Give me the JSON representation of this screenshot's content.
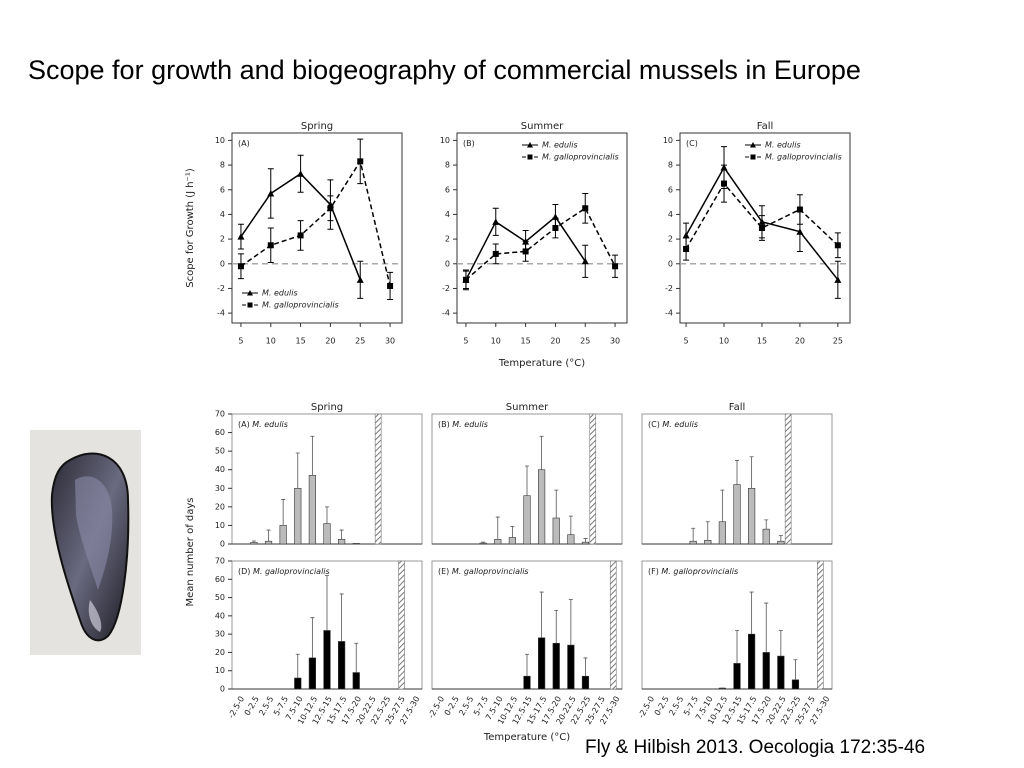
{
  "title": "Scope for growth and biogeography of commercial mussels in Europe",
  "citation": "Fly & Hilbish 2013. Oecologia  172:35-46",
  "chart_data": [
    {
      "type": "line",
      "title": "Spring",
      "panel": "(A)",
      "ylabel": "Scope for Growth (J h⁻¹)",
      "xlim": [
        3.5,
        32
      ],
      "xticks": [
        5,
        10,
        15,
        20,
        25,
        30
      ],
      "ylim": [
        -4.8,
        10.6
      ],
      "yticks": [
        -4,
        -2,
        0,
        2,
        4,
        6,
        8,
        10
      ],
      "hline": 0,
      "legend": "lower left",
      "series": [
        {
          "name": "M. edulis",
          "color": "#000000",
          "marker": "triangle",
          "dash": false,
          "x": [
            5,
            10,
            15,
            20,
            25
          ],
          "values": [
            2.2,
            5.7,
            7.3,
            4.8,
            -1.3
          ],
          "errors": [
            1.0,
            2.0,
            1.5,
            2.0,
            1.5
          ]
        },
        {
          "name": "M. galloprovincialis",
          "color": "#000000",
          "marker": "square",
          "dash": true,
          "x": [
            5,
            10,
            15,
            20,
            25,
            30
          ],
          "values": [
            -0.2,
            1.5,
            2.3,
            4.5,
            8.3,
            -1.8
          ],
          "errors": [
            1.0,
            1.4,
            1.2,
            1.0,
            1.8,
            1.1
          ]
        }
      ]
    },
    {
      "type": "line",
      "title": "Summer",
      "panel": "(B)",
      "xlabel": "Temperature (°C)",
      "xlim": [
        3.5,
        32
      ],
      "xticks": [
        5,
        10,
        15,
        20,
        25,
        30
      ],
      "ylim": [
        -4.8,
        10.6
      ],
      "yticks": [
        -4,
        -2,
        0,
        2,
        4,
        6,
        8,
        10
      ],
      "hline": 0,
      "legend": "upper right",
      "series": [
        {
          "name": "M. edulis",
          "color": "#000000",
          "marker": "triangle",
          "dash": false,
          "x": [
            5,
            10,
            15,
            20,
            25
          ],
          "values": [
            -1.3,
            3.4,
            1.8,
            3.8,
            0.2
          ],
          "errors": [
            0.7,
            1.1,
            0.9,
            1.0,
            1.3
          ]
        },
        {
          "name": "M. galloprovincialis",
          "color": "#000000",
          "marker": "square",
          "dash": true,
          "x": [
            5,
            10,
            15,
            20,
            25,
            30
          ],
          "values": [
            -1.3,
            0.8,
            1.0,
            2.9,
            4.5,
            -0.2
          ],
          "errors": [
            0.8,
            0.8,
            0.8,
            0.8,
            1.2,
            0.9
          ]
        }
      ]
    },
    {
      "type": "line",
      "title": "Fall",
      "panel": "(C)",
      "xlim": [
        4.2,
        26.6
      ],
      "xticks": [
        5,
        10,
        15,
        20,
        25
      ],
      "ylim": [
        -4.8,
        10.6
      ],
      "yticks": [
        -4,
        -2,
        0,
        2,
        4,
        6,
        8,
        10
      ],
      "hline": 0,
      "legend": "upper right",
      "series": [
        {
          "name": "M. edulis",
          "color": "#000000",
          "marker": "triangle",
          "dash": false,
          "x": [
            5,
            10,
            15,
            20,
            25
          ],
          "values": [
            2.3,
            7.8,
            3.4,
            2.6,
            -1.3
          ],
          "errors": [
            1.0,
            1.7,
            1.3,
            1.6,
            1.5
          ]
        },
        {
          "name": "M. galloprovincialis",
          "color": "#000000",
          "marker": "square",
          "dash": true,
          "x": [
            5,
            10,
            15,
            20,
            25
          ],
          "values": [
            1.2,
            6.5,
            2.9,
            4.4,
            1.5
          ],
          "errors": [
            0.9,
            1.5,
            1.0,
            1.2,
            1.0
          ]
        }
      ]
    },
    {
      "type": "bar",
      "title": "Spring",
      "panel": "(A)",
      "species": "M. edulis",
      "ylabel": "Mean number of days",
      "color": "#bbbbbb",
      "xlim": [
        -2.5,
        30
      ],
      "ylim": [
        0,
        70
      ],
      "yticks": [
        0,
        10,
        20,
        30,
        40,
        50,
        60,
        70
      ],
      "hatch_x": 22.5,
      "values": [
        0,
        0.8,
        1.5,
        10,
        30,
        37,
        11,
        2.5,
        0.3,
        0,
        0,
        0,
        0
      ],
      "errors": [
        null,
        0.8,
        6,
        14,
        19,
        21,
        9,
        5,
        0,
        null,
        null,
        null,
        null
      ]
    },
    {
      "type": "bar",
      "title": "Summer",
      "panel": "(B)",
      "species": "M. edulis",
      "color": "#bbbbbb",
      "xlim": [
        -2.5,
        30
      ],
      "ylim": [
        0,
        70
      ],
      "hatch_x": 25,
      "values": [
        0,
        0,
        0,
        0.5,
        2.5,
        3.5,
        26,
        40,
        14,
        5,
        1,
        0,
        0
      ],
      "errors": [
        null,
        null,
        null,
        0.5,
        12,
        6,
        16,
        18,
        15,
        10,
        2,
        null,
        null
      ]
    },
    {
      "type": "bar",
      "title": "Fall",
      "panel": "(C)",
      "species": "M. edulis",
      "color": "#bbbbbb",
      "xlim": [
        -2.5,
        30
      ],
      "ylim": [
        0,
        70
      ],
      "hatch_x": 22.5,
      "values": [
        0,
        0,
        0,
        1.5,
        2,
        12,
        32,
        30,
        8,
        1.5,
        0,
        0,
        0
      ],
      "errors": [
        null,
        null,
        null,
        7,
        10,
        17,
        13,
        17,
        5,
        3,
        null,
        null,
        null
      ]
    },
    {
      "type": "bar",
      "panel": "(D)",
      "species": "M. galloprovincialis",
      "color": "#000000",
      "xlim": [
        -2.5,
        30
      ],
      "ylim": [
        0,
        70
      ],
      "yticks": [
        0,
        10,
        20,
        30,
        40,
        50,
        60,
        70
      ],
      "hatch_x": 26.5,
      "categories": [
        "-2.5-0",
        "0-2.5",
        "2.5-5",
        "5-7.5",
        "7.5-10",
        "10-12.5",
        "12.5-15",
        "15-17.5",
        "17.5-20",
        "20-22.5",
        "22.5-25",
        "25-27.5",
        "27.5-30"
      ],
      "values": [
        0,
        0,
        0,
        0,
        6,
        17,
        32,
        26,
        9,
        0,
        0,
        0,
        0
      ],
      "errors": [
        null,
        null,
        null,
        null,
        13,
        22,
        30,
        26,
        16,
        null,
        null,
        null,
        null
      ]
    },
    {
      "type": "bar",
      "panel": "(E)",
      "species": "M. galloprovincialis",
      "color": "#000000",
      "xlabel": "Temperature (°C)",
      "xlim": [
        -2.5,
        30
      ],
      "ylim": [
        0,
        70
      ],
      "hatch_x": 28.5,
      "categories": [
        "-2.5-0",
        "0-2.5",
        "2.5-5",
        "5-7.5",
        "7.5-10",
        "10-12.5",
        "12.5-15",
        "15-17.5",
        "17.5-20",
        "20-22.5",
        "22.5-25",
        "25-27.5",
        "27.5-30"
      ],
      "values": [
        0,
        0,
        0,
        0,
        0,
        0,
        7,
        28,
        25,
        24,
        7,
        0,
        0
      ],
      "errors": [
        null,
        null,
        null,
        null,
        null,
        null,
        12,
        25,
        18,
        25,
        10,
        null,
        null
      ]
    },
    {
      "type": "bar",
      "panel": "(F)",
      "species": "M. galloprovincialis",
      "color": "#000000",
      "xlim": [
        -2.5,
        30
      ],
      "ylim": [
        0,
        70
      ],
      "hatch_x": 28,
      "categories": [
        "-2.5-0",
        "0-2.5",
        "2.5-5",
        "5-7.5",
        "7.5-10",
        "10-12.5",
        "12.5-15",
        "15-17.5",
        "17.5-20",
        "20-22.5",
        "22.5-25",
        "25-27.5",
        "27.5-30"
      ],
      "values": [
        0,
        0,
        0,
        0,
        0,
        0.5,
        14,
        30,
        20,
        18,
        5,
        0,
        0
      ],
      "errors": [
        null,
        null,
        null,
        null,
        null,
        0,
        18,
        23,
        27,
        14,
        11,
        null,
        null
      ]
    }
  ]
}
